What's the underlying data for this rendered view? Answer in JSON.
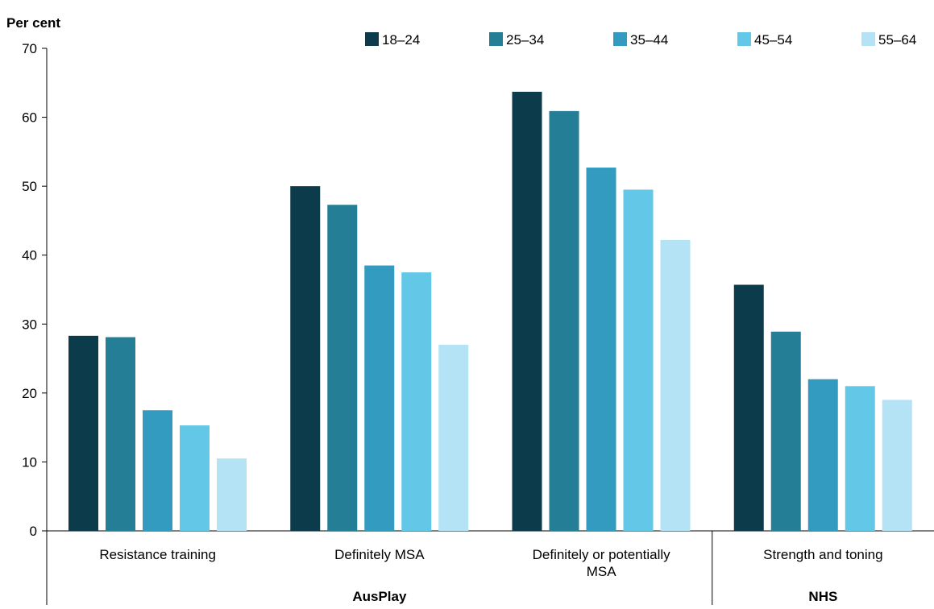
{
  "chart_data": {
    "type": "bar",
    "ylabel": "Per cent",
    "xlabel": "",
    "ylim": [
      0,
      70
    ],
    "yticks": [
      0,
      10,
      20,
      30,
      40,
      50,
      60,
      70
    ],
    "categories": [
      "Resistance training",
      "Definitely MSA",
      "Definitely or potentially MSA",
      "Strength and toning"
    ],
    "groups": [
      {
        "label": "AusPlay",
        "categories": [
          "Resistance training",
          "Definitely MSA",
          "Definitely or potentially MSA"
        ]
      },
      {
        "label": "NHS",
        "categories": [
          "Strength and toning"
        ]
      }
    ],
    "series": [
      {
        "name": "18–24",
        "color": "#0c3b4b",
        "values": [
          28.3,
          50.0,
          63.7,
          35.7
        ]
      },
      {
        "name": "25–34",
        "color": "#247f96",
        "values": [
          28.1,
          47.3,
          60.9,
          28.9
        ]
      },
      {
        "name": "35–44",
        "color": "#339bbf",
        "values": [
          17.5,
          38.5,
          52.7,
          22.0
        ]
      },
      {
        "name": "45–54",
        "color": "#63c8e7",
        "values": [
          15.3,
          37.5,
          49.5,
          21.0
        ]
      },
      {
        "name": "55–64",
        "color": "#b4e3f5",
        "values": [
          10.5,
          27.0,
          42.2,
          19.0
        ]
      }
    ],
    "legend": "top-right",
    "grid": false
  }
}
